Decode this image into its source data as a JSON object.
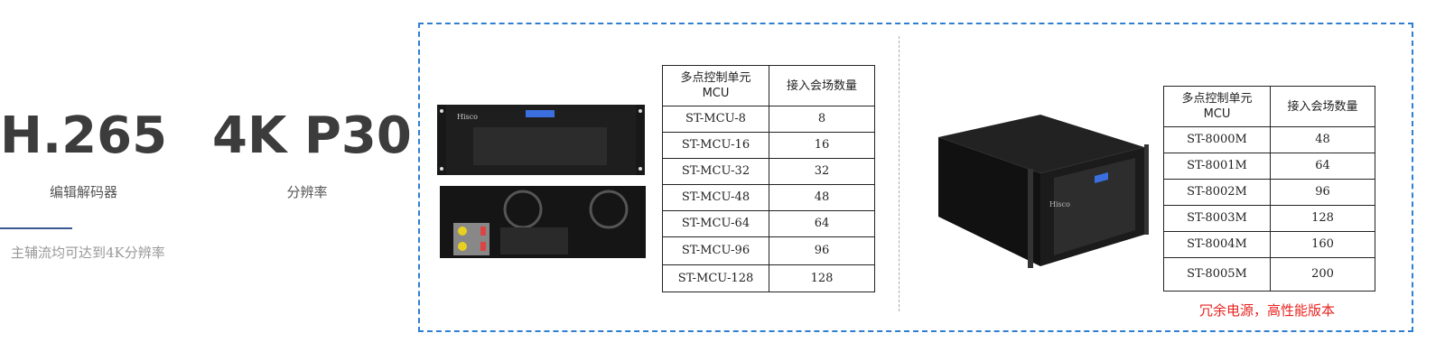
{
  "left": {
    "stat1": {
      "value": "H.265",
      "label": "编辑解码器"
    },
    "stat2": {
      "value": "4K P30",
      "label": "分辨率"
    },
    "note": "主辅流均可达到4K分辨率"
  },
  "colors": {
    "accent": "#2f7fd0",
    "line": "#3a5a94",
    "highlight": "#e8231f"
  },
  "table1": {
    "header": {
      "col1_line1": "多点控制单元",
      "col1_line2": "MCU",
      "col2": "接入会场数量"
    },
    "rows": [
      {
        "model": "ST-MCU-8",
        "count": "8"
      },
      {
        "model": "ST-MCU-16",
        "count": "16"
      },
      {
        "model": "ST-MCU-32",
        "count": "32"
      },
      {
        "model": "ST-MCU-48",
        "count": "48"
      },
      {
        "model": "ST-MCU-64",
        "count": "64"
      },
      {
        "model": "ST-MCU-96",
        "count": "96"
      },
      {
        "model": "ST-MCU-128",
        "count": "128"
      }
    ]
  },
  "table2": {
    "header": {
      "col1_line1": "多点控制单元",
      "col1_line2": "MCU",
      "col2": "接入会场数量"
    },
    "rows": [
      {
        "model": "ST-8000M",
        "count": "48"
      },
      {
        "model": "ST-8001M",
        "count": "64"
      },
      {
        "model": "ST-8002M",
        "count": "96"
      },
      {
        "model": "ST-8003M",
        "count": "128"
      },
      {
        "model": "ST-8004M",
        "count": "160"
      },
      {
        "model": "ST-8005M",
        "count": "200"
      }
    ],
    "footnote": "冗余电源，高性能版本"
  },
  "devices": {
    "brand": "Hisco"
  }
}
